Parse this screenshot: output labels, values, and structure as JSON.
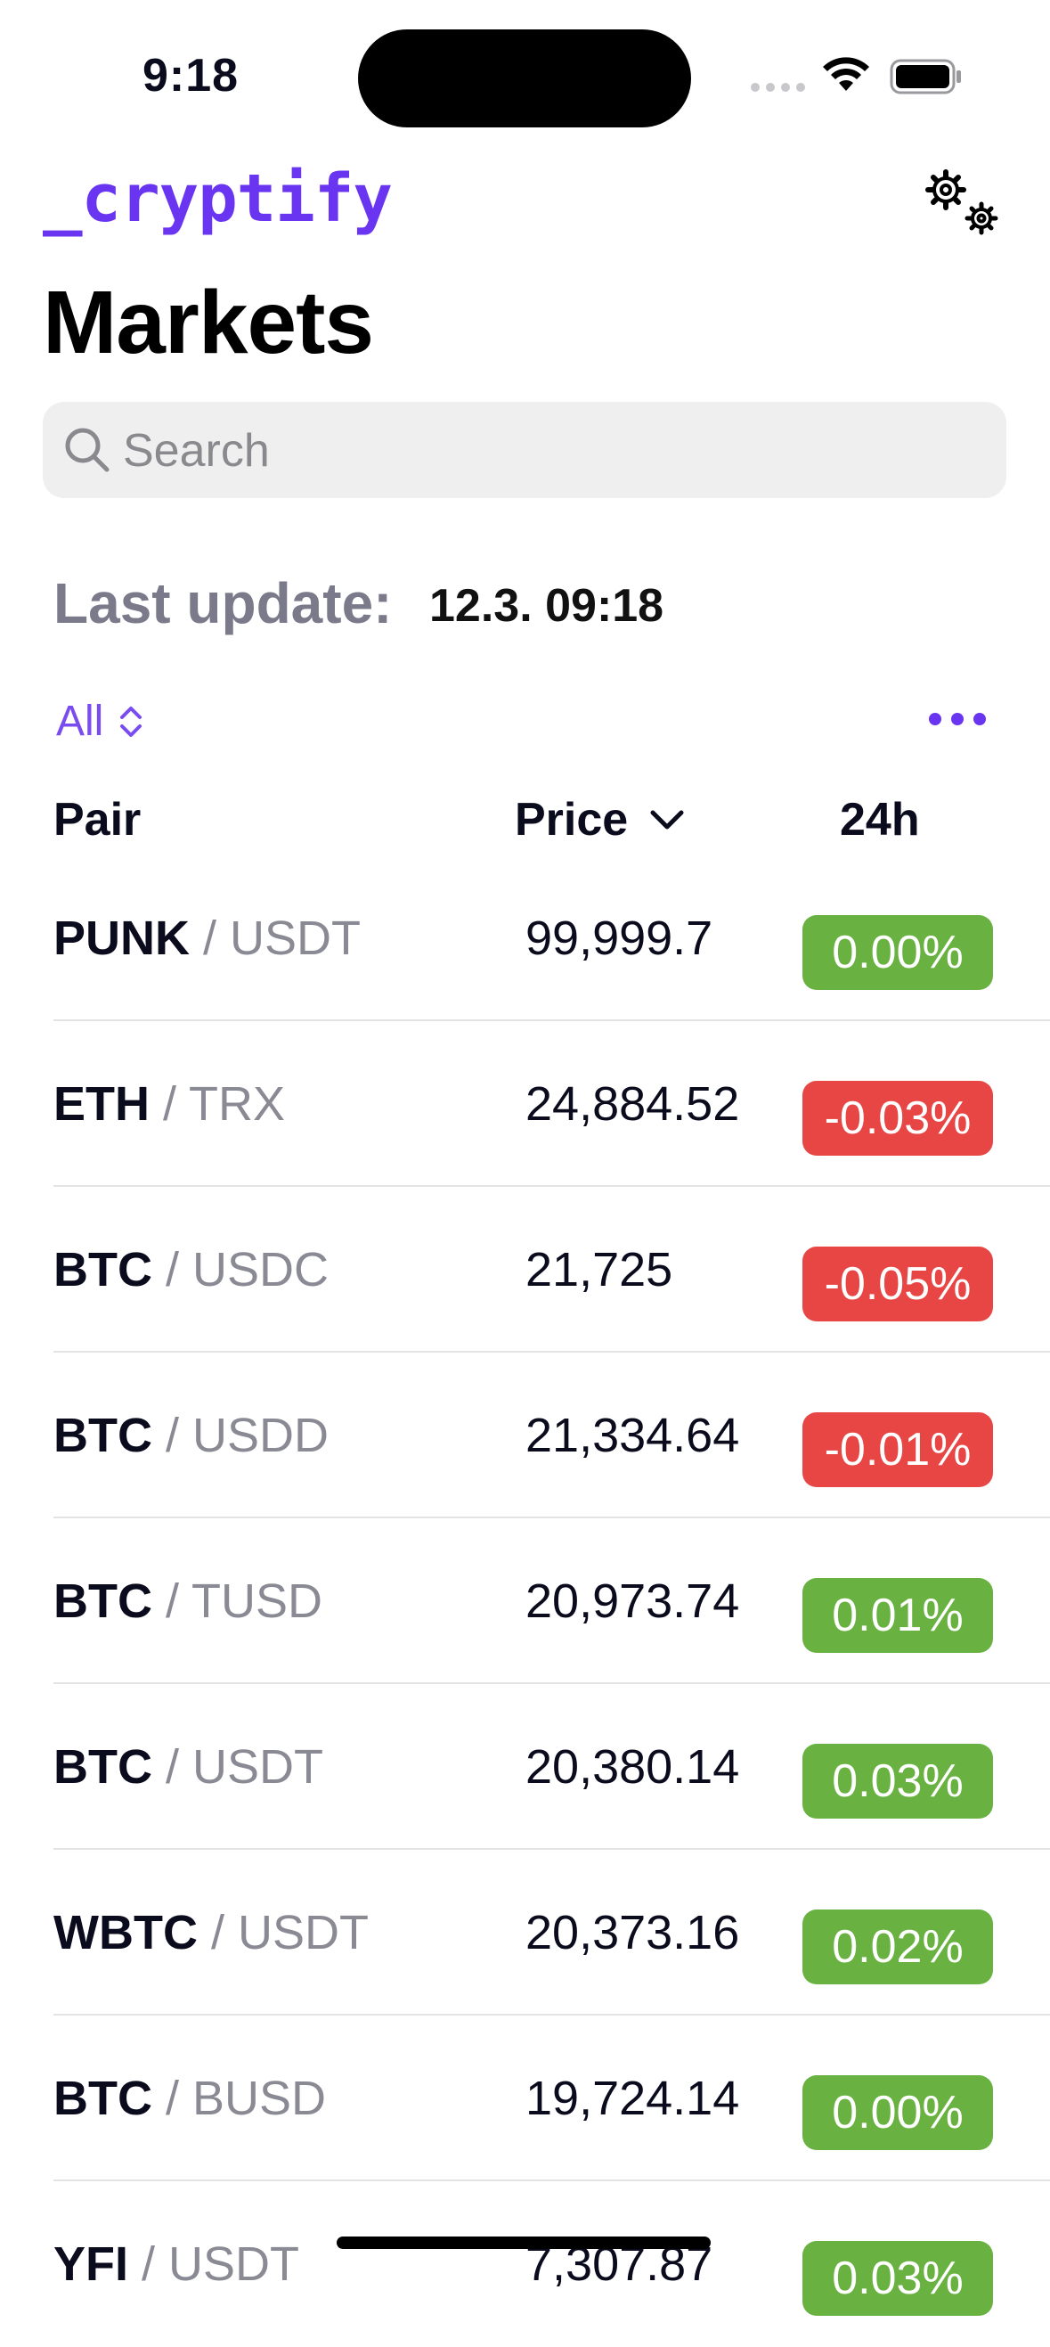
{
  "status_bar": {
    "time": "9:18"
  },
  "header": {
    "brand": "_cryptify",
    "title": "Markets",
    "settings_icon": "gears-icon"
  },
  "search": {
    "placeholder": "Search",
    "value": ""
  },
  "last_update": {
    "label": "Last update:",
    "value": "12.3. 09:18"
  },
  "filter": {
    "label": "All"
  },
  "columns": {
    "pair": "Pair",
    "price": "Price",
    "change": "24h"
  },
  "colors": {
    "accent": "#6a35f0",
    "positive": "#69b241",
    "negative": "#e84545"
  },
  "rows": [
    {
      "base": "PUNK",
      "quote": "USDT",
      "price": "99,999.7",
      "change": "0.00%",
      "direction": "pos"
    },
    {
      "base": "ETH",
      "quote": "TRX",
      "price": "24,884.52",
      "change": "-0.03%",
      "direction": "neg"
    },
    {
      "base": "BTC",
      "quote": "USDC",
      "price": "21,725",
      "change": "-0.05%",
      "direction": "neg"
    },
    {
      "base": "BTC",
      "quote": "USDD",
      "price": "21,334.64",
      "change": "-0.01%",
      "direction": "neg"
    },
    {
      "base": "BTC",
      "quote": "TUSD",
      "price": "20,973.74",
      "change": "0.01%",
      "direction": "pos"
    },
    {
      "base": "BTC",
      "quote": "USDT",
      "price": "20,380.14",
      "change": "0.03%",
      "direction": "pos"
    },
    {
      "base": "WBTC",
      "quote": "USDT",
      "price": "20,373.16",
      "change": "0.02%",
      "direction": "pos"
    },
    {
      "base": "BTC",
      "quote": "BUSD",
      "price": "19,724.14",
      "change": "0.00%",
      "direction": "pos"
    },
    {
      "base": "YFI",
      "quote": "USDT",
      "price": "7,307.87",
      "change": "0.03%",
      "direction": "pos"
    }
  ]
}
